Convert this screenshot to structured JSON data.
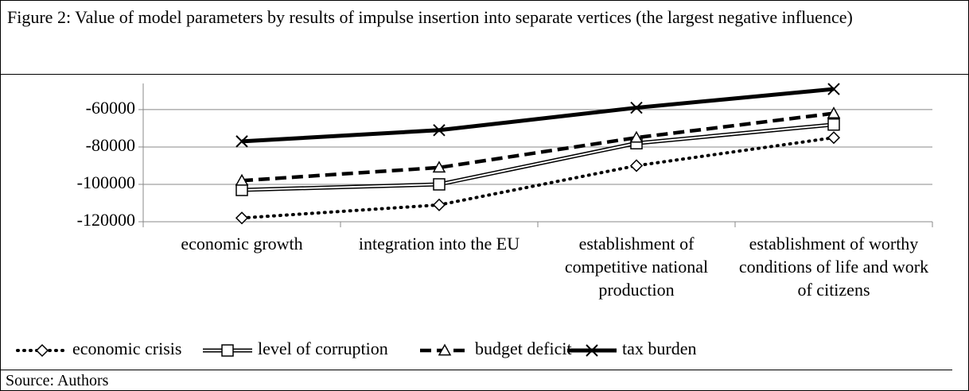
{
  "chart_data": {
    "type": "line",
    "title": "Figure 2: Value of model parameters by results of impulse insertion into separate vertices (the largest negative influence)",
    "source": "Source: Authors",
    "categories": [
      "economic growth",
      "integration into the EU",
      "establishment of competitive national production",
      "establishment of worthy conditions of life and work of citizens"
    ],
    "series": [
      {
        "name": "economic crisis",
        "color": "#000000",
        "line_style": "dotted",
        "marker": "diamond",
        "values": [
          -118000,
          -111000,
          -90000,
          -75000
        ]
      },
      {
        "name": "level of corruption",
        "color": "#000000",
        "line_style": "double",
        "marker": "square",
        "values": [
          -103000,
          -100000,
          -78000,
          -68000
        ]
      },
      {
        "name": "budget deficit",
        "color": "#000000",
        "line_style": "dashed",
        "marker": "triangle",
        "values": [
          -98000,
          -91000,
          -75000,
          -62000
        ]
      },
      {
        "name": "tax burden",
        "color": "#000000",
        "line_style": "solid",
        "marker": "x",
        "values": [
          -77000,
          -71000,
          -59000,
          -49000
        ]
      }
    ],
    "ylim": [
      -120000,
      -46000
    ],
    "yticks": [
      -120000,
      -100000,
      -80000,
      -60000
    ],
    "grid": true,
    "legend": "bottom"
  }
}
